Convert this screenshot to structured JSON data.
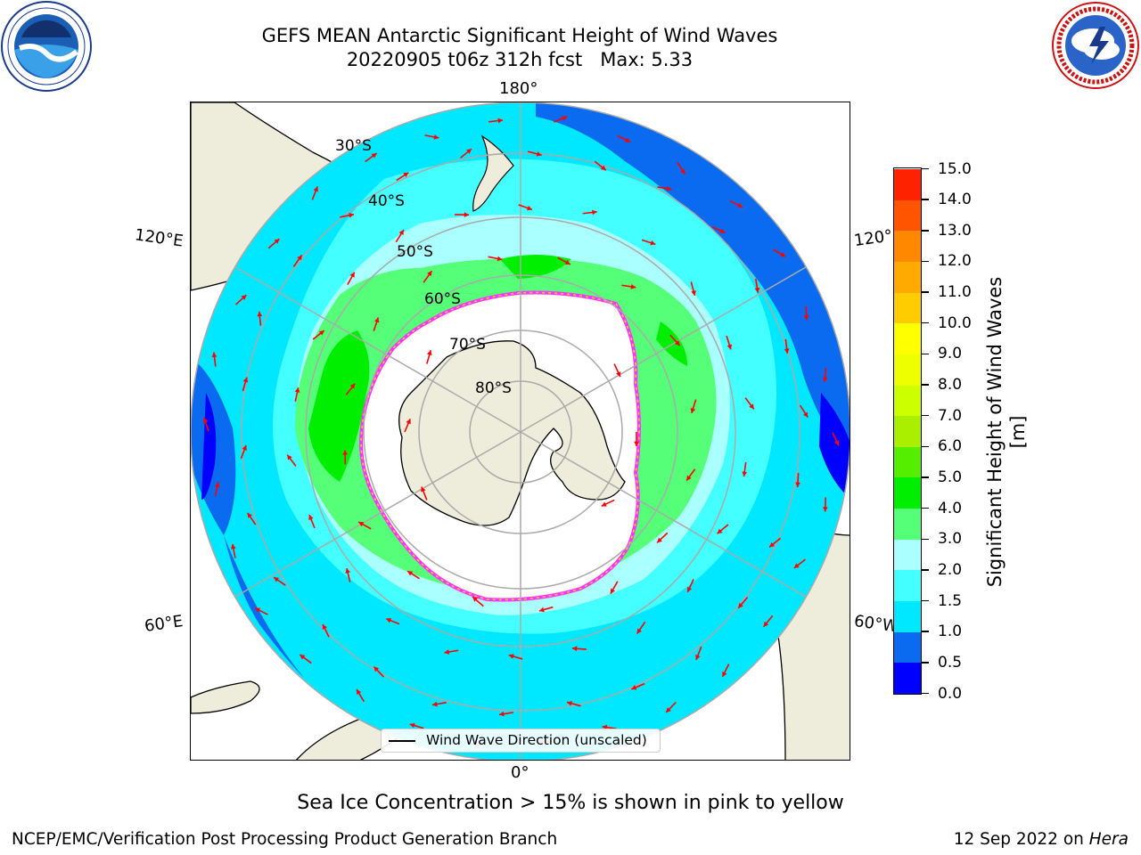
{
  "header": {
    "title_line1": "GEFS MEAN Antarctic Significant Height of Wind Waves",
    "title_line2": "20220905 t06z 312h fcst   Max: 5.33"
  },
  "logos": {
    "left": "noaa-logo",
    "right": "nws-logo"
  },
  "map": {
    "projection": "south-polar-stereographic",
    "longitude_labels": {
      "top": "180°",
      "bottom": "0°",
      "upper_left": "120°E",
      "lower_left": "60°E",
      "upper_right": "120°",
      "lower_right": "60°W"
    },
    "latitude_labels": [
      "30°S",
      "40°S",
      "50°S",
      "60°S",
      "70°S",
      "80°S"
    ],
    "arrow_color": "#ff0000",
    "land_color": "#eeecda",
    "ice_edge_colors": [
      "#ff33ff",
      "#ffcc33"
    ],
    "legend_label": "Wind Wave Direction (unscaled)"
  },
  "colorbar": {
    "title": "Significant Height of Wind Waves [m]",
    "tick_labels": [
      "0.0",
      "0.5",
      "1.0",
      "1.5",
      "2.0",
      "3.0",
      "4.0",
      "5.0",
      "6.0",
      "7.0",
      "8.0",
      "9.0",
      "10.0",
      "11.0",
      "12.0",
      "13.0",
      "14.0",
      "15.0"
    ],
    "colors": [
      "#0000ff",
      "#0a6af0",
      "#00e8ff",
      "#44ffff",
      "#aaffff",
      "#55ff77",
      "#00ee00",
      "#55ee00",
      "#aaee00",
      "#ccff00",
      "#eeff00",
      "#ffff00",
      "#ffcc00",
      "#ffaa00",
      "#ff8800",
      "#ff5500",
      "#ff2200"
    ]
  },
  "notes": {
    "ice_note": "Sea Ice Concentration > 15% is shown in pink to yellow",
    "footer_left": "NCEP/EMC/Verification Post Processing Product Generation Branch",
    "footer_date": "12 Sep 2022 on ",
    "footer_machine": "Hera"
  }
}
